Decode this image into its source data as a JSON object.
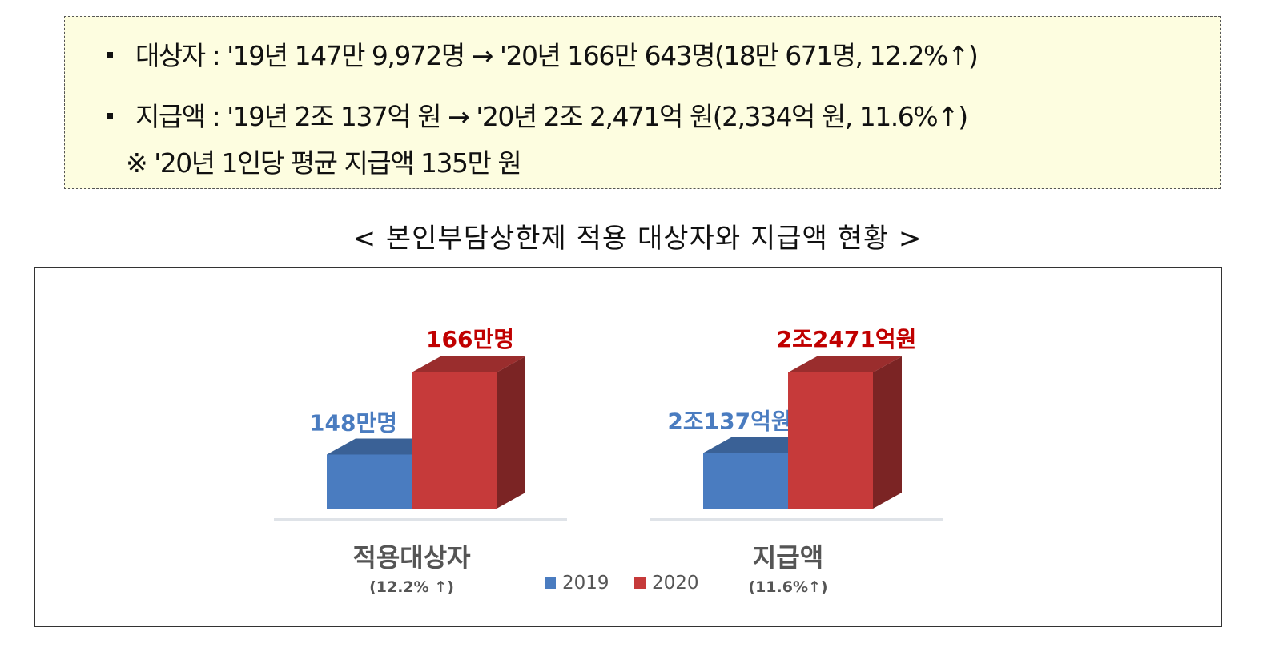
{
  "summary": {
    "line1": "대상자 : '19년 147만 9,972명 → '20년 166만 643명(18만 671명, 12.2%↑)",
    "line2": "지급액 : '19년 2조 137억 원 → '20년 2조 2,471억 원(2,334억 원, 11.6%↑)",
    "note": "※ '20년 1인당 평균 지급액 135만 원"
  },
  "caption": "< 본인부담상한제 적용 대상자와 지급액 현황 >",
  "colors": {
    "series_2019": "#4a7cc0",
    "series_2020": "#c63a3a",
    "label_2019": "#4a7cc0",
    "label_2020": "#c00000"
  },
  "chart_data": {
    "type": "bar",
    "groups": [
      {
        "category": "적용대상자",
        "sublabel": "(12.2% ↑)",
        "values": [
          148,
          166
        ],
        "unit": "만명",
        "value_labels": [
          "148만명",
          "166만명"
        ]
      },
      {
        "category": "지급액",
        "sublabel": "(11.6%↑)",
        "values": [
          20137,
          22471
        ],
        "unit": "억원",
        "value_labels": [
          "2조137억원",
          "2조2471억원"
        ]
      }
    ],
    "series": [
      {
        "name": "2019"
      },
      {
        "name": "2020"
      }
    ],
    "legend": "bottom-center"
  }
}
